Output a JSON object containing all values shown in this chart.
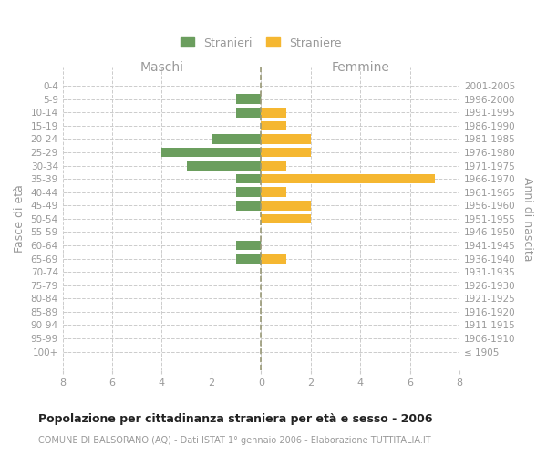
{
  "age_groups": [
    "0-4",
    "5-9",
    "10-14",
    "15-19",
    "20-24",
    "25-29",
    "30-34",
    "35-39",
    "40-44",
    "45-49",
    "50-54",
    "55-59",
    "60-64",
    "65-69",
    "70-74",
    "75-79",
    "80-84",
    "85-89",
    "90-94",
    "95-99",
    "100+"
  ],
  "birth_years": [
    "2001-2005",
    "1996-2000",
    "1991-1995",
    "1986-1990",
    "1981-1985",
    "1976-1980",
    "1971-1975",
    "1966-1970",
    "1961-1965",
    "1956-1960",
    "1951-1955",
    "1946-1950",
    "1941-1945",
    "1936-1940",
    "1931-1935",
    "1926-1930",
    "1921-1925",
    "1916-1920",
    "1911-1915",
    "1906-1910",
    "≤ 1905"
  ],
  "maschi": [
    0,
    1,
    1,
    0,
    2,
    4,
    3,
    1,
    1,
    1,
    0,
    0,
    1,
    1,
    0,
    0,
    0,
    0,
    0,
    0,
    0
  ],
  "femmine": [
    0,
    0,
    1,
    1,
    2,
    2,
    1,
    7,
    1,
    2,
    2,
    0,
    0,
    1,
    0,
    0,
    0,
    0,
    0,
    0,
    0
  ],
  "maschi_color": "#6b9e5e",
  "femmine_color": "#f5b731",
  "bg_color": "#ffffff",
  "grid_color": "#cccccc",
  "bar_height": 0.72,
  "xlim": 8,
  "title": "Popolazione per cittadinanza straniera per età e sesso - 2006",
  "subtitle": "COMUNE DI BALSORANO (AQ) - Dati ISTAT 1° gennaio 2006 - Elaborazione TUTTITALIA.IT",
  "ylabel_left": "Fasce di età",
  "ylabel_right": "Anni di nascita",
  "header_left": "Maschi",
  "header_right": "Femmine",
  "legend_maschi": "Stranieri",
  "legend_femmine": "Straniere",
  "axis_text_color": "#999999",
  "title_color": "#222222",
  "subtitle_color": "#999999"
}
